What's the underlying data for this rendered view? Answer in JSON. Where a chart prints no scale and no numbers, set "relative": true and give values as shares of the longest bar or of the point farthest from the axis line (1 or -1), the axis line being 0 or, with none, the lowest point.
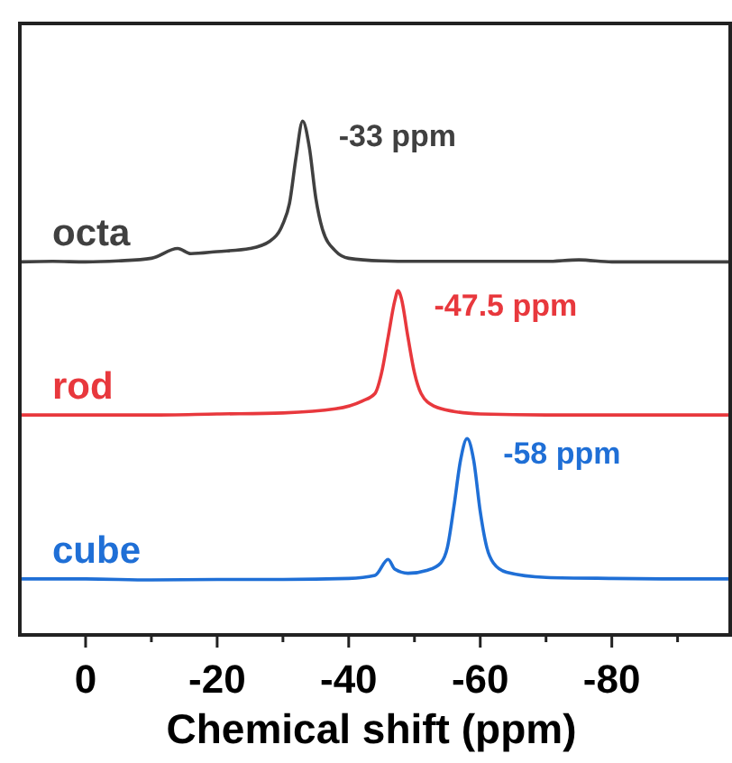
{
  "chart_data": {
    "type": "line",
    "xlabel": "Chemical shift (ppm)",
    "relative": true,
    "tick_labels": "x",
    "xlim": [
      10,
      -98
    ],
    "xticks": [
      0,
      {
        "value": -10,
        "label": null
      },
      -20,
      {
        "value": -30,
        "label": null
      },
      -40,
      {
        "value": -50,
        "label": null
      },
      -60,
      {
        "value": -70,
        "label": null
      },
      -80,
      {
        "value": -90,
        "label": null
      }
    ],
    "series": [
      {
        "name": "octa",
        "color": "#404040",
        "x": [
          10,
          5,
          0,
          -5,
          -10,
          -14,
          -16,
          -20,
          -25,
          -28,
          -30,
          -31,
          -32,
          -33,
          -34,
          -35,
          -36,
          -38,
          -40,
          -45,
          -50,
          -60,
          -70,
          -75,
          -80,
          -90,
          -98
        ],
        "values": [
          0.726,
          0.727,
          0.726,
          0.728,
          0.733,
          0.752,
          0.742,
          0.746,
          0.752,
          0.766,
          0.8,
          0.84,
          0.93,
          1,
          0.95,
          0.85,
          0.79,
          0.747,
          0.733,
          0.728,
          0.727,
          0.727,
          0.727,
          0.73,
          0.726,
          0.726,
          0.726
        ]
      },
      {
        "name": "rod",
        "color": "#e8383d",
        "x": [
          10,
          0,
          -10,
          -20,
          -30,
          -38,
          -42,
          -44,
          -45,
          -46,
          -47,
          -47.5,
          -48,
          -49,
          -50,
          -51,
          -53,
          -56,
          -60,
          -70,
          -80,
          -90,
          -98
        ],
        "values": [
          0.428,
          0.428,
          0.428,
          0.43,
          0.432,
          0.44,
          0.455,
          0.47,
          0.51,
          0.58,
          0.65,
          0.67,
          0.655,
          0.58,
          0.51,
          0.47,
          0.445,
          0.435,
          0.43,
          0.428,
          0.428,
          0.428,
          0.428
        ]
      },
      {
        "name": "cube",
        "color": "#1f6fd6",
        "x": [
          10,
          0,
          -10,
          -20,
          -30,
          -40,
          -44,
          -46,
          -47,
          -49,
          -52,
          -54,
          -55,
          -56,
          -57,
          -58,
          -59,
          -60,
          -61,
          -62,
          -64,
          -70,
          -80,
          -90,
          -98
        ],
        "values": [
          0.109,
          0.109,
          0.107,
          0.108,
          0.108,
          0.11,
          0.116,
          0.147,
          0.128,
          0.12,
          0.126,
          0.14,
          0.17,
          0.25,
          0.34,
          0.382,
          0.34,
          0.24,
          0.17,
          0.14,
          0.122,
          0.112,
          0.11,
          0.109,
          0.109
        ]
      }
    ],
    "annotations": [
      {
        "text": "-33 ppm",
        "x": -33,
        "y": 1
      },
      {
        "text": "-47.5 ppm",
        "x": -47.5,
        "y": 0.67
      },
      {
        "text": "-58 ppm",
        "x": -58,
        "y": 0.382
      }
    ]
  }
}
